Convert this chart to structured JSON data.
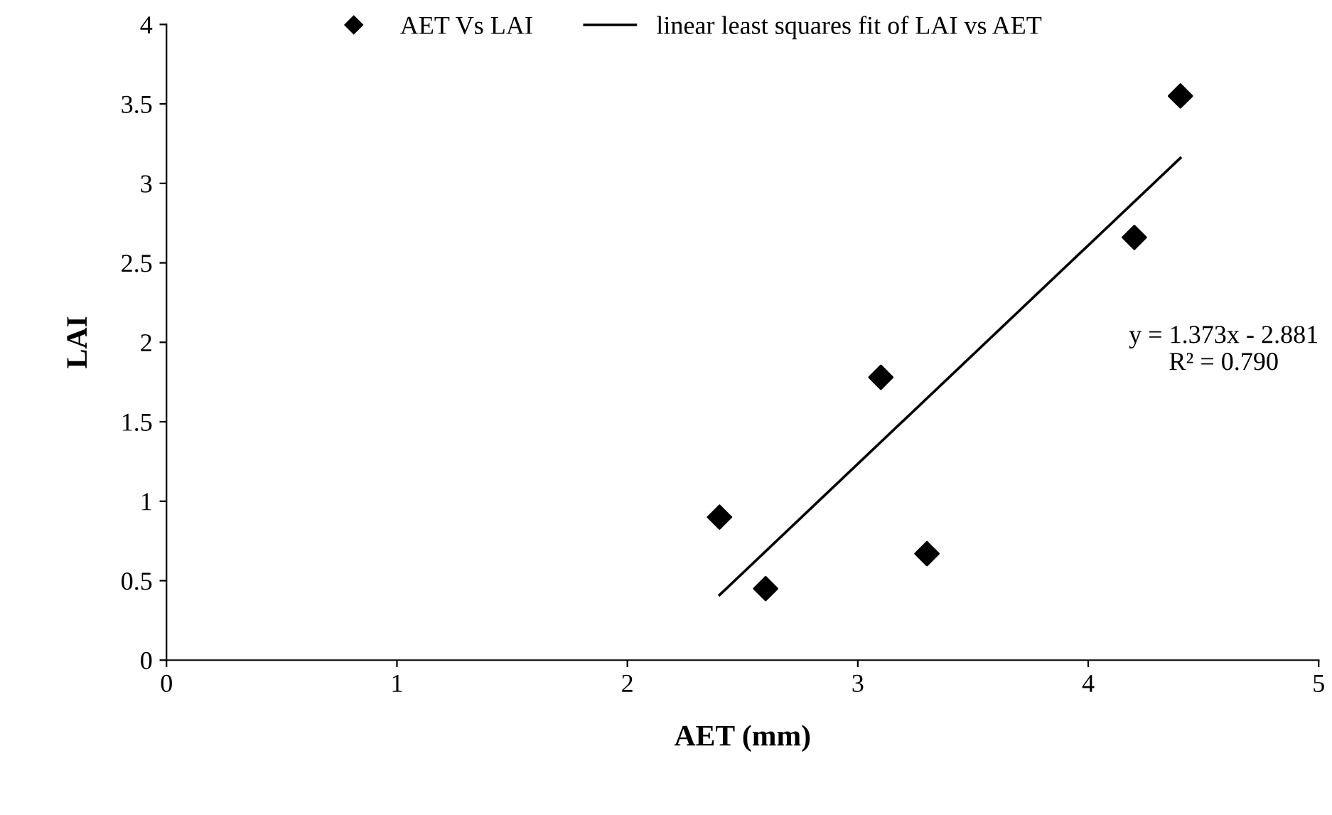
{
  "chart_data": {
    "type": "scatter",
    "xlabel": "AET (mm)",
    "ylabel": "LAI",
    "xlim": [
      0,
      5
    ],
    "ylim": [
      0,
      4
    ],
    "xticks": [
      0,
      1,
      2,
      3,
      4,
      5
    ],
    "yticks": [
      0,
      0.5,
      1,
      1.5,
      2,
      2.5,
      3,
      3.5,
      4
    ],
    "grid": false,
    "legend": "top",
    "series": [
      {
        "name": "AET Vs LAI",
        "marker": "diamond",
        "color": "#000000",
        "x": [
          2.4,
          2.6,
          3.1,
          3.3,
          4.2,
          4.4
        ],
        "values": [
          0.9,
          0.45,
          1.78,
          0.67,
          2.66,
          3.55
        ]
      },
      {
        "name": "linear least squares fit of LAI vs AET",
        "type": "line",
        "color": "#000000",
        "x": [
          2.4,
          4.4
        ],
        "values": [
          0.41,
          3.16
        ]
      }
    ],
    "annotations": [
      "y = 1.373x - 2.881\nR² = 0.790"
    ]
  }
}
